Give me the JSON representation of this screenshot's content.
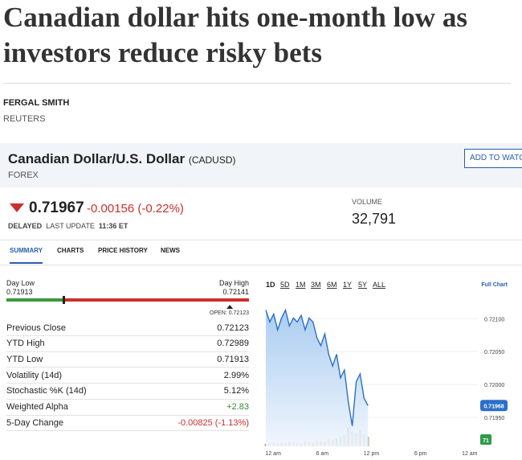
{
  "article": {
    "title_lines": [
      "Canadian dollar hits one-month low as",
      "investors reduce risky bets"
    ],
    "author": "FERGAL SMITH",
    "source": "REUTERS"
  },
  "quote": {
    "name": "Canadian Dollar/U.S. Dollar",
    "symbol": "(CADUSD)",
    "category": "FOREX",
    "button": "ADD TO WATC",
    "price": 0.71967,
    "change": "-0.00156 (-0.22%)",
    "status": "DELAYED",
    "last_update_label": "LAST UPDATE",
    "last_update": "11:36 ET",
    "volume_label": "VOLUME",
    "volume": "32,791"
  },
  "tabs": [
    "SUMMARY",
    "CHARTS",
    "PRICE HISTORY",
    "NEWS"
  ],
  "range": {
    "low_label": "Day Low",
    "low": 0.71913,
    "high_label": "Day High",
    "high": 0.72141,
    "open_label": "OPEN:",
    "open": 0.72123
  },
  "rows": [
    [
      "Previous Close",
      "0.72123"
    ],
    [
      "YTD High",
      "0.72989"
    ],
    [
      "YTD Low",
      "0.71913"
    ],
    [
      "Volatility (14d)",
      "2.99%"
    ],
    [
      "Stochastic %K (14d)",
      "5.12%"
    ],
    [
      "Weighted Alpha",
      "+2.83"
    ],
    [
      "5-Day Change",
      "-0.00825 (-1.13%)"
    ]
  ],
  "chart": {
    "type": "line",
    "ranges": [
      "1D",
      "5D",
      "1M",
      "3M",
      "6M",
      "1Y",
      "5Y",
      "ALL"
    ],
    "full_chart": "Full Chart",
    "ylim": [
      0.71906,
      0.72126
    ],
    "yticks": [
      {
        "value": 0.721,
        "label": "0.72100"
      },
      {
        "value": 0.7205,
        "label": "0.72050"
      },
      {
        "value": 0.72,
        "label": "0.72000"
      },
      {
        "value": 0.7195,
        "label": "0.71950"
      }
    ],
    "xlim": [
      -1,
      25
    ],
    "xticks": [
      {
        "value": 0,
        "label": "12 am"
      },
      {
        "value": 6,
        "label": "6 am"
      },
      {
        "value": 12,
        "label": "12 pm"
      },
      {
        "value": 18,
        "label": "6 pm"
      },
      {
        "value": 24,
        "label": "12 am"
      }
    ],
    "x": [
      -0.9,
      -0.42,
      0.06,
      0.54,
      1.02,
      1.5,
      1.98,
      2.46,
      2.94,
      3.42,
      3.9,
      4.38,
      4.86,
      5.34,
      5.82,
      6.3,
      6.78,
      7.26,
      7.74,
      8.22,
      8.7,
      9.18,
      9.66,
      10.14,
      10.62,
      11.1,
      11.58
    ],
    "values": [
      0.72113,
      0.72095,
      0.72107,
      0.72083,
      0.72101,
      0.72113,
      0.72089,
      0.72101,
      0.72095,
      0.72105,
      0.72083,
      0.72101,
      0.72095,
      0.72071,
      0.72059,
      0.72077,
      0.72046,
      0.72028,
      0.72046,
      0.7201,
      0.72022,
      0.71973,
      0.71937,
      0.72004,
      0.72016,
      0.71979,
      0.71968
    ],
    "volume": [
      8,
      10,
      12,
      9,
      11,
      10,
      14,
      12,
      13,
      9,
      15,
      12,
      11,
      18,
      16,
      14,
      22,
      20,
      25,
      30,
      35,
      60,
      45,
      40,
      50,
      38,
      30
    ],
    "vlim": [
      0,
      100
    ],
    "last": {
      "value": 0.71968,
      "label": "0.71968"
    },
    "volume_badge": "71"
  }
}
